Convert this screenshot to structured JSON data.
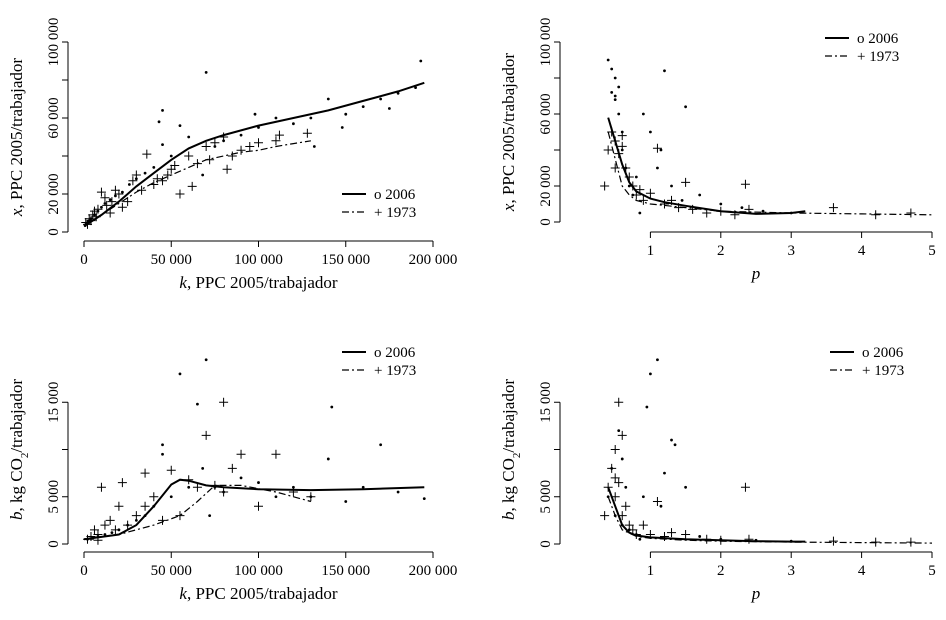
{
  "chart_data": [
    {
      "type": "scatter",
      "panel": "top-left",
      "xlabel_var": "k",
      "xlabel_rest": ", PPC 2005/trabajador",
      "ylabel_var": "x",
      "ylabel_rest": ", PPC 2005/trabajador",
      "xlim": [
        0,
        200000
      ],
      "ylim": [
        0,
        100000
      ],
      "xticks": [
        0,
        50000,
        100000,
        150000,
        200000
      ],
      "xtick_labels": [
        "0",
        "50 000",
        "100 000",
        "150 000",
        "200 000"
      ],
      "yticks": [
        0,
        20000,
        40000,
        60000,
        80000,
        100000
      ],
      "ytick_labels": [
        "0",
        "20 000",
        "",
        "60 000",
        "",
        "100 000"
      ],
      "legend_position": "lower-right",
      "legend": [
        {
          "label": "o 2006",
          "style": "solid"
        },
        {
          "label": "+ 1973",
          "style": "dashdot"
        }
      ],
      "series": [
        {
          "name": "o 2006",
          "kind": "curve",
          "style": "solid",
          "x": [
            0,
            10000,
            20000,
            30000,
            40000,
            50000,
            60000,
            70000,
            80000,
            100000,
            120000,
            140000,
            160000,
            180000,
            195000
          ],
          "y": [
            3000,
            9000,
            16000,
            24000,
            31000,
            38000,
            44000,
            48000,
            51000,
            56000,
            60000,
            64000,
            69000,
            74000,
            78500
          ]
        },
        {
          "name": "+ 1973",
          "kind": "curve",
          "style": "dashdot",
          "x": [
            0,
            10000,
            20000,
            30000,
            40000,
            50000,
            60000,
            70000,
            80000,
            90000,
            100000,
            110000,
            120000,
            130000
          ],
          "y": [
            3000,
            9000,
            15000,
            21000,
            26000,
            30000,
            34000,
            38000,
            40000,
            42000,
            43000,
            45000,
            46500,
            48000
          ]
        },
        {
          "name": "o 2006",
          "kind": "points",
          "marker": "dot",
          "x": [
            1000,
            2000,
            3000,
            4000,
            6000,
            8000,
            10000,
            12000,
            15000,
            18000,
            22000,
            26000,
            30000,
            35000,
            40000,
            43000,
            45000,
            50000,
            55000,
            60000,
            70000,
            75000,
            80000,
            90000,
            100000,
            110000,
            120000,
            130000,
            140000,
            150000,
            160000,
            170000,
            180000,
            190000,
            193000,
            45000,
            68000,
            98000,
            132000,
            148000,
            175000
          ],
          "y": [
            4000,
            5000,
            6000,
            7000,
            9000,
            11000,
            13000,
            15000,
            17000,
            19000,
            21000,
            25000,
            28000,
            31000,
            34000,
            58000,
            64000,
            40000,
            56000,
            50000,
            84000,
            45000,
            48000,
            51000,
            55000,
            60000,
            57000,
            60000,
            70000,
            62000,
            66000,
            70000,
            73000,
            76000,
            90000,
            46000,
            30000,
            62000,
            45000,
            55000,
            65000
          ]
        },
        {
          "name": "+ 1973",
          "kind": "points",
          "marker": "plus",
          "x": [
            1000,
            2000,
            3000,
            4000,
            5000,
            6000,
            7000,
            8000,
            10000,
            12000,
            13000,
            15000,
            16000,
            18000,
            20000,
            22000,
            25000,
            28000,
            30000,
            33000,
            36000,
            40000,
            42000,
            45000,
            48000,
            50000,
            52000,
            55000,
            60000,
            62000,
            65000,
            70000,
            72000,
            75000,
            80000,
            82000,
            85000,
            90000,
            95000,
            100000,
            110000,
            112000,
            128000
          ],
          "y": [
            5000,
            4000,
            7000,
            6000,
            9000,
            11000,
            8000,
            12000,
            21000,
            18000,
            14000,
            10000,
            16000,
            22000,
            20000,
            13000,
            16000,
            27000,
            30000,
            22000,
            41000,
            25000,
            28000,
            27000,
            30000,
            33000,
            35000,
            20000,
            40000,
            24000,
            36000,
            45000,
            38000,
            47000,
            50000,
            33000,
            40000,
            43000,
            45000,
            47000,
            48000,
            51000,
            52000
          ]
        }
      ]
    },
    {
      "type": "scatter",
      "panel": "top-right",
      "xlabel_var": "p",
      "xlabel_rest": "",
      "ylabel_var": "x",
      "ylabel_rest": ", PPC 2005/trabajador",
      "xlim": [
        0,
        5
      ],
      "ylim": [
        0,
        100000
      ],
      "xticks": [
        1,
        2,
        3,
        4,
        5
      ],
      "xtick_labels": [
        "1",
        "2",
        "3",
        "4",
        "5"
      ],
      "yticks": [
        0,
        20000,
        40000,
        60000,
        80000,
        100000
      ],
      "ytick_labels": [
        "0",
        "20 000",
        "",
        "60 000",
        "",
        "100 000"
      ],
      "legend_position": "top-right",
      "legend": [
        {
          "label": "o 2006",
          "style": "solid"
        },
        {
          "label": "+ 1973",
          "style": "dashdot"
        }
      ],
      "series": [
        {
          "name": "o 2006",
          "kind": "curve",
          "style": "solid",
          "x": [
            0.4,
            0.5,
            0.6,
            0.7,
            0.8,
            1.0,
            1.2,
            1.5,
            2.0,
            2.5,
            3.0,
            3.2
          ],
          "y": [
            58000,
            45000,
            32000,
            22000,
            17000,
            13000,
            11000,
            9000,
            6000,
            4500,
            5000,
            6000
          ]
        },
        {
          "name": "+ 1973",
          "kind": "curve",
          "style": "dashdot",
          "x": [
            0.4,
            0.5,
            0.6,
            0.7,
            0.8,
            1.0,
            1.5,
            2.0,
            3.0,
            4.0,
            5.0
          ],
          "y": [
            50000,
            35000,
            20000,
            15000,
            12000,
            10000,
            8000,
            6000,
            5000,
            4500,
            4000
          ]
        },
        {
          "name": "o 2006",
          "kind": "points",
          "marker": "dot",
          "x": [
            0.4,
            0.45,
            0.5,
            0.5,
            0.55,
            0.6,
            0.6,
            0.65,
            0.7,
            0.75,
            0.8,
            0.9,
            1.0,
            1.1,
            1.2,
            1.3,
            1.5,
            1.7,
            2.0,
            2.3,
            2.6,
            3.0,
            0.55,
            0.5,
            0.45,
            1.15,
            1.45,
            0.85
          ],
          "y": [
            90000,
            85000,
            80000,
            70000,
            60000,
            50000,
            40000,
            30000,
            20000,
            15000,
            25000,
            60000,
            50000,
            30000,
            84000,
            20000,
            64000,
            15000,
            10000,
            8000,
            6000,
            5000,
            75000,
            68000,
            72000,
            40000,
            12000,
            5000
          ]
        },
        {
          "name": "+ 1973",
          "kind": "points",
          "marker": "plus",
          "x": [
            0.35,
            0.4,
            0.45,
            0.5,
            0.55,
            0.6,
            0.65,
            0.7,
            0.75,
            0.8,
            0.85,
            0.9,
            1.0,
            1.1,
            1.2,
            1.3,
            1.4,
            1.5,
            1.6,
            1.8,
            2.0,
            2.2,
            2.35,
            2.4,
            3.6,
            4.2,
            4.7,
            0.5,
            0.6
          ],
          "y": [
            20000,
            40000,
            50000,
            45000,
            38000,
            42000,
            30000,
            25000,
            20000,
            15000,
            18000,
            12000,
            16000,
            41000,
            10000,
            12000,
            8000,
            22000,
            7000,
            5000,
            6000,
            4000,
            21000,
            7000,
            8000,
            4000,
            5000,
            30000,
            48000
          ]
        }
      ]
    },
    {
      "type": "scatter",
      "panel": "bottom-left",
      "xlabel_var": "k",
      "xlabel_rest": ", PPC 2005/trabajador",
      "ylabel_var": "b",
      "ylabel_rest": ", kg CO",
      "ylabel_sub": "2",
      "ylabel_tail": "/trabajador",
      "xlim": [
        0,
        200000
      ],
      "ylim": [
        0,
        20000
      ],
      "xticks": [
        0,
        50000,
        100000,
        150000,
        200000
      ],
      "xtick_labels": [
        "0",
        "50 000",
        "100 000",
        "150 000",
        "200 000"
      ],
      "yticks": [
        0,
        5000,
        10000,
        15000
      ],
      "ytick_labels": [
        "0",
        "5 000",
        "",
        "15 000"
      ],
      "legend_position": "top-right",
      "legend": [
        {
          "label": "o 2006",
          "style": "solid"
        },
        {
          "label": "+ 1973",
          "style": "dashdot"
        }
      ],
      "series": [
        {
          "name": "o 2006",
          "kind": "curve",
          "style": "solid",
          "x": [
            0,
            20000,
            30000,
            40000,
            50000,
            55000,
            60000,
            70000,
            80000,
            100000,
            130000,
            160000,
            195000
          ],
          "y": [
            500,
            1000,
            2000,
            4000,
            6300,
            6800,
            6700,
            6200,
            6000,
            5800,
            5700,
            5800,
            6000
          ]
        },
        {
          "name": "+ 1973",
          "kind": "curve",
          "style": "dashdot",
          "x": [
            0,
            20000,
            40000,
            55000,
            65000,
            75000,
            90000,
            110000,
            130000
          ],
          "y": [
            500,
            1000,
            2000,
            3000,
            4500,
            6200,
            6200,
            5500,
            4500
          ]
        },
        {
          "name": "o 2006",
          "kind": "points",
          "marker": "dot",
          "x": [
            2000,
            5000,
            8000,
            12000,
            16000,
            20000,
            25000,
            30000,
            35000,
            40000,
            45000,
            50000,
            55000,
            60000,
            65000,
            70000,
            75000,
            80000,
            90000,
            100000,
            110000,
            120000,
            130000,
            140000,
            150000,
            160000,
            170000,
            180000,
            195000,
            45000,
            68000,
            72000,
            142000
          ],
          "y": [
            500,
            600,
            800,
            1000,
            1200,
            1500,
            2000,
            2500,
            3000,
            4000,
            10500,
            5000,
            18000,
            6000,
            14800,
            19500,
            6000,
            5500,
            7000,
            6500,
            5000,
            6000,
            5000,
            9000,
            4500,
            6000,
            10500,
            5500,
            4800,
            9500,
            8000,
            3000,
            14500
          ]
        },
        {
          "name": "+ 1973",
          "kind": "points",
          "marker": "plus",
          "x": [
            2000,
            4000,
            6000,
            8000,
            10000,
            12000,
            15000,
            18000,
            20000,
            22000,
            25000,
            30000,
            35000,
            40000,
            45000,
            50000,
            55000,
            60000,
            65000,
            70000,
            75000,
            80000,
            85000,
            90000,
            100000,
            110000,
            120000,
            130000,
            8000,
            35000,
            80000
          ],
          "y": [
            500,
            800,
            1500,
            1000,
            6000,
            2000,
            2500,
            1500,
            4000,
            6500,
            2000,
            3000,
            4000,
            5000,
            2500,
            7800,
            3000,
            6800,
            6000,
            11500,
            6200,
            15000,
            8000,
            9500,
            4000,
            9500,
            5500,
            5000,
            400,
            7500,
            5500
          ]
        }
      ]
    },
    {
      "type": "scatter",
      "panel": "bottom-right",
      "xlabel_var": "p",
      "xlabel_rest": "",
      "ylabel_var": "b",
      "ylabel_rest": ", kg CO",
      "ylabel_sub": "2",
      "ylabel_tail": "/trabajador",
      "xlim": [
        0,
        5
      ],
      "ylim": [
        0,
        20000
      ],
      "xticks": [
        1,
        2,
        3,
        4,
        5
      ],
      "xtick_labels": [
        "1",
        "2",
        "3",
        "4",
        "5"
      ],
      "yticks": [
        0,
        5000,
        10000,
        15000
      ],
      "ytick_labels": [
        "0",
        "5 000",
        "",
        "15 000"
      ],
      "legend_position": "top-right",
      "legend": [
        {
          "label": "o 2006",
          "style": "solid"
        },
        {
          "label": "+ 1973",
          "style": "dashdot"
        }
      ],
      "series": [
        {
          "name": "o 2006",
          "kind": "curve",
          "style": "solid",
          "x": [
            0.4,
            0.5,
            0.6,
            0.7,
            0.8,
            1.0,
            1.5,
            2.0,
            2.5,
            3.0,
            3.2
          ],
          "y": [
            6000,
            4000,
            2000,
            1200,
            900,
            700,
            500,
            400,
            300,
            250,
            250
          ]
        },
        {
          "name": "+ 1973",
          "kind": "curve",
          "style": "dashdot",
          "x": [
            0.4,
            0.5,
            0.6,
            0.8,
            1.0,
            1.5,
            2.0,
            3.0,
            4.0,
            5.0
          ],
          "y": [
            5000,
            3000,
            1500,
            800,
            600,
            400,
            300,
            200,
            150,
            100
          ]
        },
        {
          "name": "o 2006",
          "kind": "points",
          "marker": "dot",
          "x": [
            0.4,
            0.45,
            0.5,
            0.55,
            0.6,
            0.65,
            0.7,
            0.8,
            0.9,
            1.0,
            1.1,
            1.2,
            1.3,
            1.5,
            1.7,
            2.0,
            2.5,
            3.0,
            0.95,
            1.15,
            1.35,
            0.85,
            0.6
          ],
          "y": [
            5000,
            8000,
            3000,
            12000,
            2000,
            6000,
            1500,
            1000,
            5000,
            18000,
            19500,
            7500,
            11000,
            6000,
            800,
            500,
            400,
            300,
            14500,
            4000,
            10500,
            500,
            9000
          ]
        },
        {
          "name": "+ 1973",
          "kind": "points",
          "marker": "plus",
          "x": [
            0.35,
            0.4,
            0.45,
            0.5,
            0.5,
            0.55,
            0.6,
            0.6,
            0.65,
            0.7,
            0.75,
            0.8,
            0.9,
            1.0,
            1.1,
            1.2,
            1.3,
            1.5,
            1.8,
            2.0,
            2.35,
            2.4,
            3.6,
            4.2,
            4.7,
            0.5,
            0.55
          ],
          "y": [
            3000,
            6000,
            8000,
            5000,
            10000,
            15000,
            11500,
            3000,
            4000,
            2000,
            1500,
            1000,
            2000,
            1000,
            4500,
            800,
            1200,
            1000,
            500,
            400,
            6000,
            500,
            300,
            200,
            200,
            7000,
            6500
          ]
        }
      ]
    }
  ]
}
